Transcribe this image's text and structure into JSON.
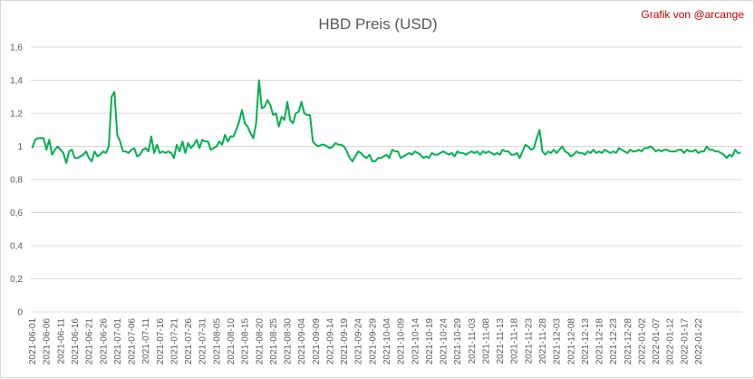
{
  "credit": "Grafik von @arcange",
  "chart_data": {
    "type": "line",
    "title": "HBD Preis (USD)",
    "xlabel": "",
    "ylabel": "",
    "ylim": [
      0,
      1.6
    ],
    "yticks": [
      "0",
      "0,2",
      "0,4",
      "0,6",
      "0,8",
      "1",
      "1,2",
      "1,4",
      "1,6"
    ],
    "grid": true,
    "legend": "none",
    "series_color": "#00b050",
    "start_date": "2021-06-01",
    "x_tick_labels": [
      "2021-06-01",
      "2021-06-06",
      "2021-06-11",
      "2021-06-16",
      "2021-06-21",
      "2021-06-26",
      "2021-07-01",
      "2021-07-06",
      "2021-07-11",
      "2021-07-16",
      "2021-07-21",
      "2021-07-26",
      "2021-07-31",
      "2021-08-05",
      "2021-08-10",
      "2021-08-15",
      "2021-08-20",
      "2021-08-25",
      "2021-08-30",
      "2021-09-04",
      "2021-09-09",
      "2021-09-14",
      "2021-09-19",
      "2021-09-24",
      "2021-09-29",
      "2021-10-04",
      "2021-10-09",
      "2021-10-14",
      "2021-10-19",
      "2021-10-24",
      "2021-10-29",
      "2021-11-03",
      "2021-11-08",
      "2021-11-13",
      "2021-11-18",
      "2021-11-23",
      "2021-11-28",
      "2021-12-03",
      "2021-12-08",
      "2021-12-13",
      "2021-12-18",
      "2021-12-23",
      "2021-12-28",
      "2022-01-02",
      "2022-01-07",
      "2022-01-12",
      "2022-01-17",
      "2022-01-22"
    ],
    "series": [
      {
        "values": [
          0.99,
          1.04,
          1.05,
          1.05,
          1.05,
          0.98,
          1.04,
          0.95,
          0.98,
          1.0,
          0.98,
          0.96,
          0.9,
          0.97,
          0.98,
          0.93,
          0.93,
          0.94,
          0.95,
          0.97,
          0.93,
          0.91,
          0.97,
          0.94,
          0.95,
          0.97,
          0.96,
          1.0,
          1.3,
          1.33,
          1.07,
          1.03,
          0.97,
          0.97,
          0.96,
          0.98,
          0.99,
          0.94,
          0.95,
          0.98,
          0.99,
          0.97,
          1.06,
          0.96,
          1.01,
          0.96,
          0.97,
          0.96,
          0.97,
          0.96,
          0.93,
          1.01,
          0.97,
          1.03,
          0.96,
          1.02,
          0.99,
          1.01,
          1.04,
          0.99,
          1.04,
          1.03,
          1.03,
          0.98,
          0.99,
          1.0,
          1.03,
          1.01,
          1.07,
          1.03,
          1.06,
          1.06,
          1.1,
          1.15,
          1.22,
          1.14,
          1.12,
          1.08,
          1.05,
          1.14,
          1.4,
          1.23,
          1.24,
          1.28,
          1.25,
          1.19,
          1.2,
          1.12,
          1.18,
          1.16,
          1.27,
          1.16,
          1.14,
          1.2,
          1.21,
          1.27,
          1.2,
          1.19,
          1.19,
          1.03,
          1.01,
          1.0,
          1.01,
          1.01,
          1.0,
          0.99,
          1.0,
          1.02,
          1.01,
          1.01,
          1.0,
          0.97,
          0.93,
          0.91,
          0.94,
          0.97,
          0.96,
          0.94,
          0.93,
          0.95,
          0.91,
          0.91,
          0.93,
          0.93,
          0.94,
          0.95,
          0.93,
          0.98,
          0.97,
          0.97,
          0.93,
          0.94,
          0.95,
          0.96,
          0.95,
          0.97,
          0.96,
          0.95,
          0.93,
          0.94,
          0.93,
          0.96,
          0.95,
          0.95,
          0.96,
          0.97,
          0.96,
          0.95,
          0.96,
          0.94,
          0.97,
          0.96,
          0.96,
          0.95,
          0.96,
          0.97,
          0.96,
          0.97,
          0.95,
          0.97,
          0.96,
          0.97,
          0.96,
          0.95,
          0.96,
          0.95,
          0.98,
          0.97,
          0.97,
          0.95,
          0.95,
          0.96,
          0.93,
          0.97,
          1.01,
          1.0,
          0.98,
          0.99,
          1.05,
          1.1,
          0.97,
          0.95,
          0.97,
          0.96,
          0.98,
          0.96,
          0.98,
          1.0,
          0.97,
          0.96,
          0.94,
          0.95,
          0.97,
          0.96,
          0.96,
          0.95,
          0.97,
          0.96,
          0.98,
          0.96,
          0.97,
          0.96,
          0.98,
          0.97,
          0.96,
          0.97,
          0.96,
          0.99,
          0.98,
          0.97,
          0.96,
          0.98,
          0.97,
          0.97,
          0.98,
          0.97,
          0.99,
          0.99,
          1.0,
          0.99,
          0.97,
          0.98,
          0.97,
          0.98,
          0.98,
          0.97,
          0.97,
          0.97,
          0.98,
          0.98,
          0.96,
          0.98,
          0.97,
          0.97,
          0.98,
          0.96,
          0.97,
          0.97,
          1.0,
          0.98,
          0.98,
          0.97,
          0.97,
          0.96,
          0.95,
          0.93,
          0.95,
          0.94,
          0.98,
          0.96,
          0.96
        ]
      }
    ]
  }
}
